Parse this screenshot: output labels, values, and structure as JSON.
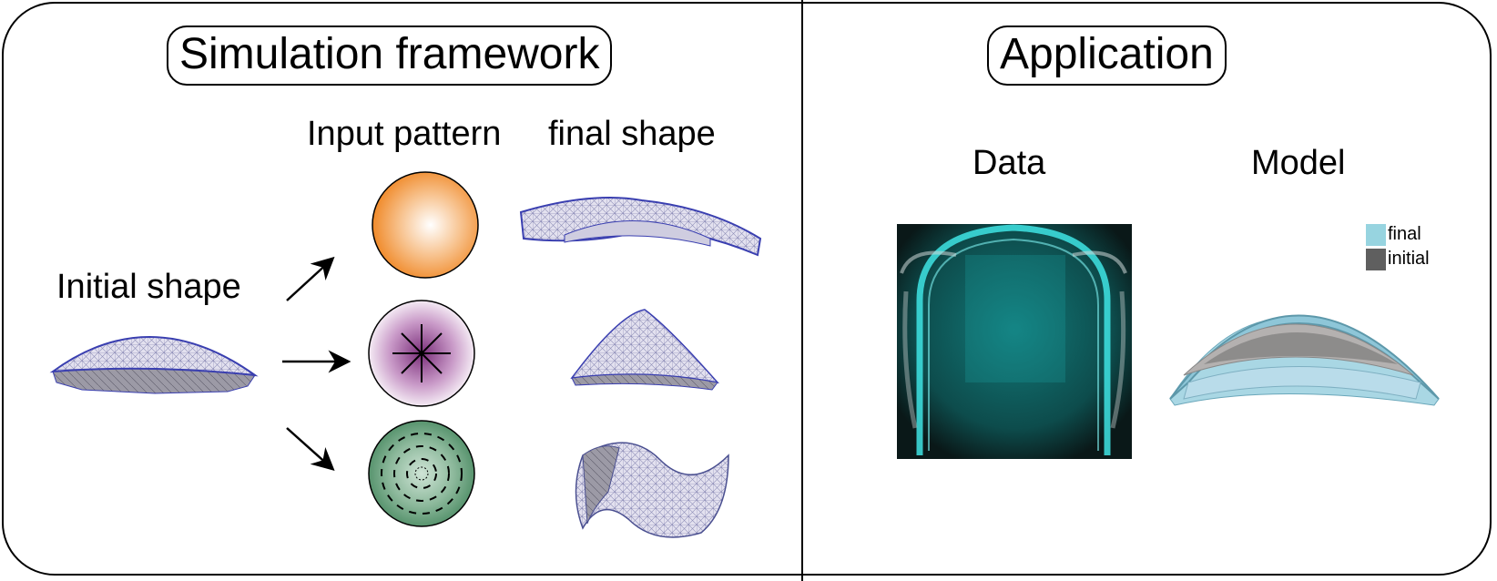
{
  "left_panel": {
    "title": "Simulation framework",
    "initial_shape_label": "Initial shape",
    "input_pattern_label": "Input pattern",
    "final_shape_label": "final shape"
  },
  "right_panel": {
    "title": "Application",
    "data_label": "Data",
    "model_label": "Model",
    "legend": [
      {
        "label": "final",
        "color": "#97d4e0"
      },
      {
        "label": "initial",
        "color": "#5f5f5f"
      }
    ]
  },
  "colors": {
    "orange_pattern": "#f39a3a",
    "purple_pattern": "#8a3d86",
    "green_pattern": "#4d8a66",
    "mesh_edge": "#3a3fb0",
    "mesh_fill": "#d8d6ea",
    "data_glow": "#22c9c9"
  }
}
